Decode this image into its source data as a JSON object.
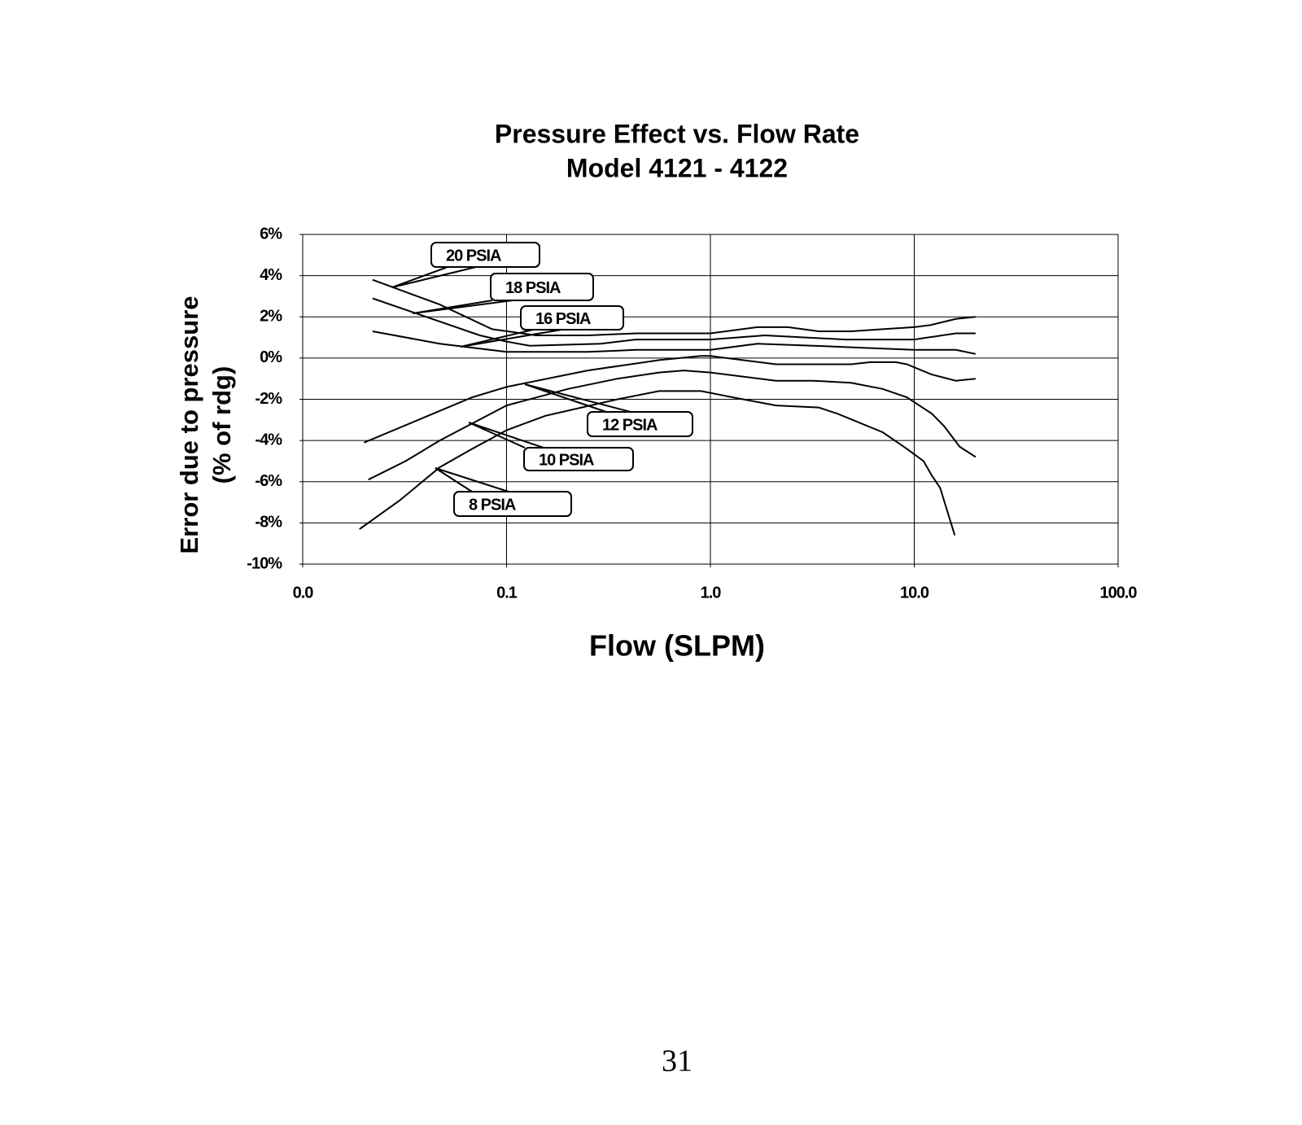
{
  "chart_data": {
    "type": "line",
    "title": "Pressure Effect vs. Flow Rate",
    "subtitle": "Model 4121 - 4122",
    "xlabel": "Flow (SLPM)",
    "ylabel": [
      "Error due to pressure",
      "(% of rdg)"
    ],
    "xscale": "log",
    "xlim": [
      0.01,
      100
    ],
    "xticks": [
      {
        "value": 0.01,
        "label": "0.0"
      },
      {
        "value": 0.1,
        "label": "0.1"
      },
      {
        "value": 1,
        "label": "1.0"
      },
      {
        "value": 10,
        "label": "10.0"
      },
      {
        "value": 100,
        "label": "100.0"
      }
    ],
    "ylim": [
      -10,
      6
    ],
    "yticks": [
      {
        "value": -10,
        "label": "-10%"
      },
      {
        "value": -8,
        "label": "-8%"
      },
      {
        "value": -6,
        "label": "-6%"
      },
      {
        "value": -4,
        "label": "-4%"
      },
      {
        "value": -2,
        "label": "-2%"
      },
      {
        "value": 0,
        "label": "0%"
      },
      {
        "value": 2,
        "label": "2%"
      },
      {
        "value": 4,
        "label": "4%"
      },
      {
        "value": 6,
        "label": "6%"
      }
    ],
    "grid": true,
    "series": [
      {
        "name": "20 PSIA",
        "color": "#000000",
        "x": [
          0.022,
          0.047,
          0.085,
          0.14,
          0.25,
          0.43,
          1,
          1.7,
          2.4,
          3.4,
          4.9,
          7,
          10,
          12,
          16,
          20
        ],
        "values": [
          3.8,
          2.6,
          1.4,
          1.1,
          1.1,
          1.2,
          1.2,
          1.5,
          1.5,
          1.3,
          1.3,
          1.4,
          1.5,
          1.6,
          1.9,
          2.0
        ]
      },
      {
        "name": "18 PSIA",
        "color": "#000000",
        "x": [
          0.022,
          0.074,
          0.1,
          0.13,
          0.29,
          0.43,
          1,
          1.85,
          4.6,
          10,
          16,
          20
        ],
        "values": [
          2.9,
          1.1,
          0.8,
          0.6,
          0.7,
          0.9,
          0.9,
          1.1,
          0.9,
          0.9,
          1.2,
          1.2
        ]
      },
      {
        "name": "16 PSIA",
        "color": "#000000",
        "x": [
          0.022,
          0.047,
          0.1,
          0.25,
          0.43,
          1,
          1.7,
          3.2,
          5.6,
          10,
          16,
          20
        ],
        "values": [
          1.3,
          0.7,
          0.3,
          0.3,
          0.4,
          0.4,
          0.7,
          0.6,
          0.5,
          0.4,
          0.4,
          0.2
        ]
      },
      {
        "name": "12 PSIA",
        "color": "#000000",
        "x": [
          0.02,
          0.068,
          0.1,
          0.25,
          0.56,
          0.9,
          1,
          2.1,
          4.9,
          6.1,
          8.1,
          9.2,
          12.2,
          16,
          20
        ],
        "values": [
          -4.1,
          -1.9,
          -1.4,
          -0.6,
          -0.1,
          0.1,
          0.1,
          -0.3,
          -0.3,
          -0.2,
          -0.2,
          -0.3,
          -0.8,
          -1.1,
          -1.0
        ]
      },
      {
        "name": "10 PSIA",
        "color": "#000000",
        "x": [
          0.021,
          0.032,
          0.047,
          0.1,
          0.2,
          0.35,
          0.56,
          0.74,
          1,
          2.1,
          3.2,
          4.9,
          7,
          9.2,
          12.2,
          14,
          16.7,
          20
        ],
        "values": [
          -5.9,
          -5.0,
          -4.0,
          -2.3,
          -1.5,
          -1.0,
          -0.7,
          -0.6,
          -0.7,
          -1.1,
          -1.1,
          -1.2,
          -1.5,
          -1.9,
          -2.7,
          -3.3,
          -4.3,
          -4.8
        ]
      },
      {
        "name": "8 PSIA",
        "color": "#000000",
        "x": [
          0.019,
          0.03,
          0.047,
          0.068,
          0.1,
          0.155,
          0.35,
          0.56,
          0.9,
          1.28,
          2.1,
          3.4,
          4.2,
          7,
          9.2,
          11.1,
          12.2,
          13.4,
          15.8
        ],
        "values": [
          -8.3,
          -6.9,
          -5.3,
          -4.4,
          -3.5,
          -2.8,
          -2.0,
          -1.6,
          -1.6,
          -1.9,
          -2.3,
          -2.4,
          -2.7,
          -3.6,
          -4.4,
          -5.0,
          -5.7,
          -6.3,
          -8.6
        ]
      }
    ]
  },
  "page": {
    "number": "31"
  }
}
